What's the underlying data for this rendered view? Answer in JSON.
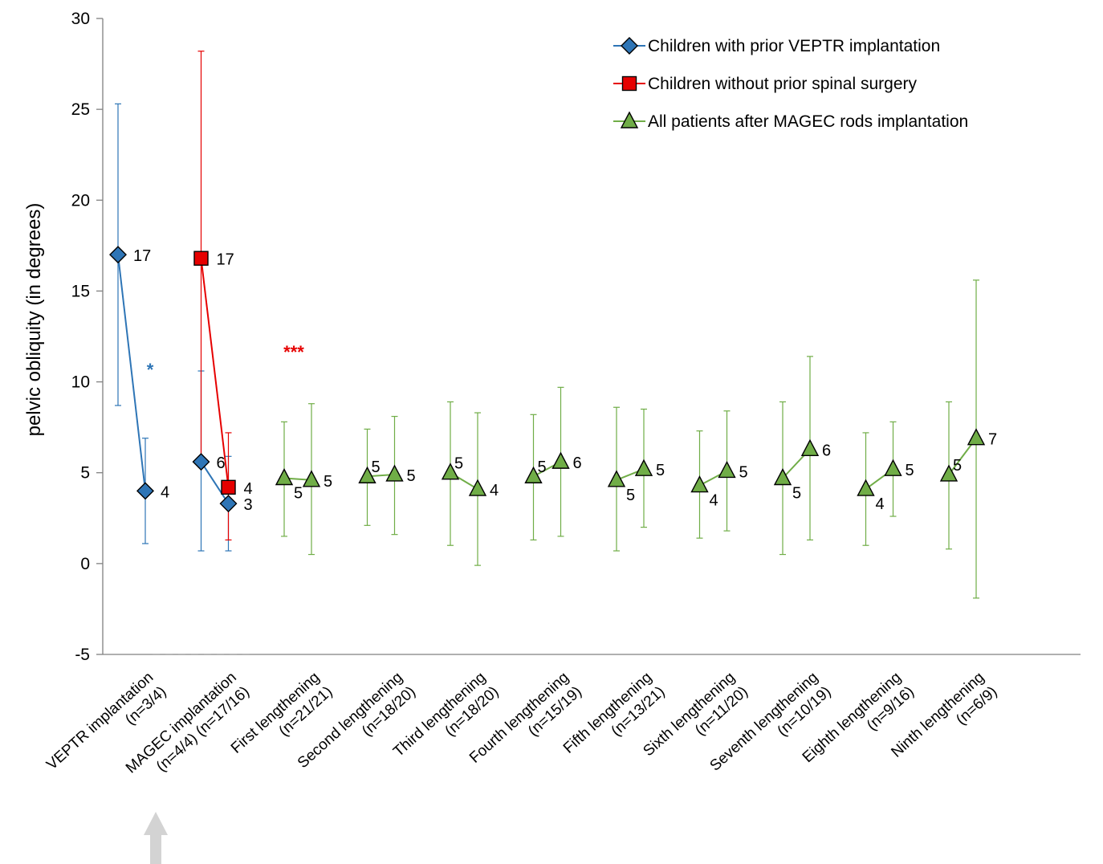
{
  "chart_data": {
    "type": "line",
    "title": "",
    "xlabel": "",
    "ylabel": "pelvic obliquity (in degrees)",
    "ylim": [
      -5,
      30
    ],
    "yticks": [
      -5,
      0,
      5,
      10,
      15,
      20,
      25,
      30
    ],
    "grid": false,
    "legend_position": "top-right",
    "categories": [
      {
        "line1": "VEPTR implantation",
        "line2": "(n=3/4)"
      },
      {
        "line1": "MAGEC implantation",
        "line2": "(n=4/4) (n=17/16)"
      },
      {
        "line1": "First lengthening",
        "line2": "(n=21/21)"
      },
      {
        "line1": "Second lengthening",
        "line2": "(n=18/20)"
      },
      {
        "line1": "Third lengthening",
        "line2": "(n=18/20)"
      },
      {
        "line1": "Fourth lengthening",
        "line2": "(n=15/19)"
      },
      {
        "line1": "Fifth lengthening",
        "line2": "(n=13/21)"
      },
      {
        "line1": "Sixth lengthening",
        "line2": "(n=11/20)"
      },
      {
        "line1": "Seventh lengthening",
        "line2": "(n=10/19)"
      },
      {
        "line1": "Eighth lengthening",
        "line2": "(n=9/16)"
      },
      {
        "line1": "Ninth lengthening",
        "line2": "(n=6/9)"
      }
    ],
    "series": [
      {
        "name": "Children with prior VEPTR implantation",
        "color": "#2e75b6",
        "marker": "diamond",
        "segments": [
          [
            {
              "x": 0,
              "offset": -1,
              "y": 17,
              "low": 8.7,
              "high": 25.3,
              "label": "17"
            },
            {
              "x": 0,
              "offset": 1,
              "y": 4,
              "low": 1.1,
              "high": 6.9,
              "label": "4"
            }
          ],
          [
            {
              "x": 1,
              "offset": -1,
              "y": 5.6,
              "low": 0.7,
              "high": 10.6,
              "label": "6"
            },
            {
              "x": 1,
              "offset": 1,
              "y": 3.3,
              "low": 0.7,
              "high": 5.9,
              "label": "3"
            }
          ]
        ]
      },
      {
        "name": "Children without prior spinal surgery",
        "color": "#e60000",
        "marker": "square",
        "segments": [
          [
            {
              "x": 1,
              "offset": -1,
              "y": 16.8,
              "low": 5.3,
              "high": 28.2,
              "label": "17"
            },
            {
              "x": 1,
              "offset": 1,
              "y": 4.2,
              "low": 1.3,
              "high": 7.2,
              "label": "4"
            }
          ]
        ]
      },
      {
        "name": "All patients after MAGEC rods implantation",
        "color": "#70ad47",
        "marker": "triangle",
        "segments": [
          [
            {
              "x": 2,
              "offset": -1,
              "y": 4.7,
              "low": 1.5,
              "high": 7.8,
              "label": "5"
            },
            {
              "x": 2,
              "offset": 1,
              "y": 4.6,
              "low": 0.5,
              "high": 8.8,
              "label": "5"
            }
          ],
          [
            {
              "x": 3,
              "offset": -1,
              "y": 4.8,
              "low": 2.1,
              "high": 7.4,
              "label": "5"
            },
            {
              "x": 3,
              "offset": 1,
              "y": 4.9,
              "low": 1.6,
              "high": 8.1,
              "label": "5"
            }
          ],
          [
            {
              "x": 4,
              "offset": -1,
              "y": 5.0,
              "low": 1.0,
              "high": 8.9,
              "label": "5"
            },
            {
              "x": 4,
              "offset": 1,
              "y": 4.1,
              "low": -0.1,
              "high": 8.3,
              "label": "4"
            }
          ],
          [
            {
              "x": 5,
              "offset": -1,
              "y": 4.8,
              "low": 1.3,
              "high": 8.2,
              "label": "5"
            },
            {
              "x": 5,
              "offset": 1,
              "y": 5.6,
              "low": 1.5,
              "high": 9.7,
              "label": "6"
            }
          ],
          [
            {
              "x": 6,
              "offset": -1,
              "y": 4.6,
              "low": 0.7,
              "high": 8.6,
              "label": "5"
            },
            {
              "x": 6,
              "offset": 1,
              "y": 5.2,
              "low": 2.0,
              "high": 8.5,
              "label": "5"
            }
          ],
          [
            {
              "x": 7,
              "offset": -1,
              "y": 4.3,
              "low": 1.4,
              "high": 7.3,
              "label": "4"
            },
            {
              "x": 7,
              "offset": 1,
              "y": 5.1,
              "low": 1.8,
              "high": 8.4,
              "label": "5"
            }
          ],
          [
            {
              "x": 8,
              "offset": -1,
              "y": 4.7,
              "low": 0.5,
              "high": 8.9,
              "label": "5"
            },
            {
              "x": 8,
              "offset": 1,
              "y": 6.3,
              "low": 1.3,
              "high": 11.4,
              "label": "6"
            }
          ],
          [
            {
              "x": 9,
              "offset": -1,
              "y": 4.1,
              "low": 1.0,
              "high": 7.2,
              "label": "4"
            },
            {
              "x": 9,
              "offset": 1,
              "y": 5.2,
              "low": 2.6,
              "high": 7.8,
              "label": "5"
            }
          ],
          [
            {
              "x": 10,
              "offset": -1,
              "y": 4.9,
              "low": 0.8,
              "high": 8.9,
              "label": "5"
            },
            {
              "x": 10,
              "offset": 1,
              "y": 6.9,
              "low": -1.9,
              "high": 15.6,
              "label": "7"
            }
          ]
        ]
      }
    ],
    "annotations": [
      {
        "text": "*",
        "color": "#2e75b6"
      },
      {
        "text": "***",
        "color": "#e60000"
      }
    ]
  }
}
